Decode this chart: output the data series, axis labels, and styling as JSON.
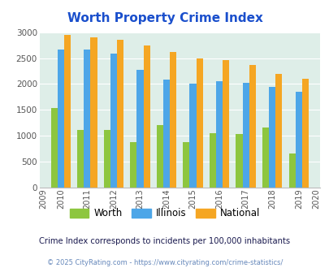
{
  "title": "Worth Property Crime Index",
  "years": [
    2009,
    2010,
    2011,
    2012,
    2013,
    2014,
    2015,
    2016,
    2017,
    2018,
    2019,
    2020
  ],
  "worth": [
    null,
    1535,
    1115,
    1115,
    885,
    1200,
    880,
    1055,
    1030,
    1155,
    660,
    null
  ],
  "illinois": [
    null,
    2670,
    2670,
    2580,
    2280,
    2090,
    2000,
    2050,
    2020,
    1940,
    1850,
    null
  ],
  "national": [
    null,
    2940,
    2900,
    2855,
    2750,
    2610,
    2500,
    2465,
    2360,
    2195,
    2095,
    null
  ],
  "worth_color": "#8dc63f",
  "illinois_color": "#4da6e8",
  "national_color": "#f5a623",
  "bg_color": "#deeee8",
  "title_color": "#1a4fcc",
  "note_color": "#1a1a4f",
  "copyright_color": "#6688bb",
  "ylim": [
    0,
    3000
  ],
  "yticks": [
    0,
    500,
    1000,
    1500,
    2000,
    2500,
    3000
  ],
  "xlabel_note": "Crime Index corresponds to incidents per 100,000 inhabitants",
  "copyright": "© 2025 CityRating.com - https://www.cityrating.com/crime-statistics/"
}
